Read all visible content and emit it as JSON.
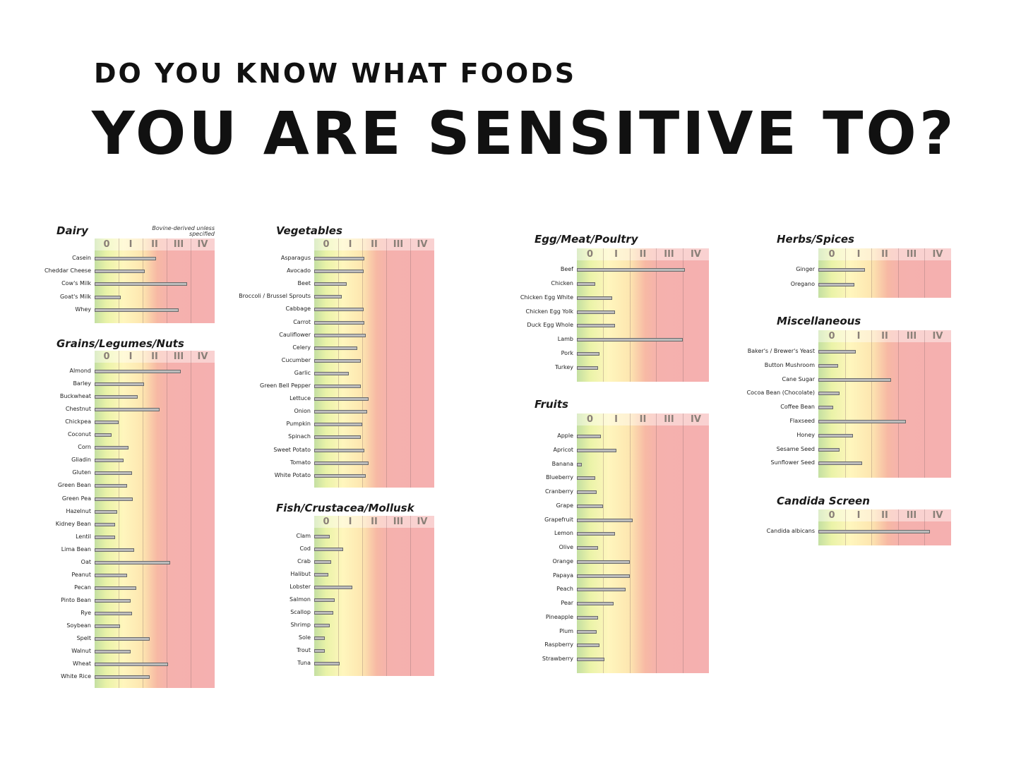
{
  "headline": {
    "line1": "DO YOU KNOW WHAT FOODS",
    "line2": "YOU ARE SENSITIVE TO?"
  },
  "scale_labels": [
    "0",
    "I",
    "II",
    "III",
    "IV"
  ],
  "chart_data": [
    {
      "type": "bar",
      "orientation": "horizontal",
      "title": "Dairy",
      "note": "Bovine-derived unless specified",
      "xlim": [
        0,
        5
      ],
      "categories": [
        "Casein",
        "Cheddar Cheese",
        "Cow's Milk",
        "Goat's Milk",
        "Whey"
      ],
      "values": [
        2.55,
        2.1,
        3.85,
        1.1,
        3.5
      ]
    },
    {
      "type": "bar",
      "orientation": "horizontal",
      "title": "Grains/Legumes/Nuts",
      "xlim": [
        0,
        5
      ],
      "categories": [
        "Almond",
        "Barley",
        "Buckwheat",
        "Chestnut",
        "Chickpea",
        "Coconut",
        "Corn",
        "Gliadin",
        "Gluten",
        "Green Bean",
        "Green Pea",
        "Hazelnut",
        "Kidney Bean",
        "Lentil",
        "Lima Bean",
        "Oat",
        "Peanut",
        "Pecan",
        "Pinto Bean",
        "Rye",
        "Soybean",
        "Spelt",
        "Walnut",
        "Wheat",
        "White Rice"
      ],
      "values": [
        3.6,
        2.05,
        1.8,
        2.7,
        1.0,
        0.7,
        1.4,
        1.2,
        1.55,
        1.35,
        1.6,
        0.95,
        0.85,
        0.85,
        1.65,
        3.15,
        1.35,
        1.75,
        1.5,
        1.55,
        1.05,
        2.3,
        1.5,
        3.05,
        2.3
      ]
    },
    {
      "type": "bar",
      "orientation": "horizontal",
      "title": "Vegetables",
      "xlim": [
        0,
        5
      ],
      "categories": [
        "Asparagus",
        "Avocado",
        "Beet",
        "Broccoli / Brussel Sprouts",
        "Cabbage",
        "Carrot",
        "Cauliflower",
        "Celery",
        "Cucumber",
        "Garlic",
        "Green Bell Pepper",
        "Lettuce",
        "Onion",
        "Pumpkin",
        "Spinach",
        "Sweet Potato",
        "Tomato",
        "White Potato"
      ],
      "values": [
        2.1,
        2.05,
        1.35,
        1.15,
        2.05,
        2.1,
        2.15,
        1.8,
        1.95,
        1.45,
        1.95,
        2.25,
        2.2,
        2.0,
        1.95,
        2.1,
        2.25,
        2.15
      ]
    },
    {
      "type": "bar",
      "orientation": "horizontal",
      "title": "Fish/Crustacea/Mollusk",
      "xlim": [
        0,
        5
      ],
      "categories": [
        "Clam",
        "Cod",
        "Crab",
        "Halibut",
        "Lobster",
        "Salmon",
        "Scallop",
        "Shrimp",
        "Sole",
        "Trout",
        "Tuna"
      ],
      "values": [
        0.65,
        1.2,
        0.7,
        0.6,
        1.6,
        0.85,
        0.8,
        0.65,
        0.45,
        0.45,
        1.05
      ]
    },
    {
      "type": "bar",
      "orientation": "horizontal",
      "title": "Egg/Meat/Poultry",
      "xlim": [
        0,
        5
      ],
      "categories": [
        "Beef",
        "Chicken",
        "Chicken Egg White",
        "Chicken Egg Yolk",
        "Duck Egg Whole",
        "Lamb",
        "Pork",
        "Turkey"
      ],
      "values": [
        4.1,
        0.7,
        1.35,
        1.45,
        1.45,
        4.0,
        0.85,
        0.8
      ]
    },
    {
      "type": "bar",
      "orientation": "horizontal",
      "title": "Fruits",
      "xlim": [
        0,
        5
      ],
      "categories": [
        "Apple",
        "Apricot",
        "Banana",
        "Blueberry",
        "Cranberry",
        "Grape",
        "Grapefruit",
        "Lemon",
        "Olive",
        "Orange",
        "Papaya",
        "Peach",
        "Pear",
        "Pineapple",
        "Plum",
        "Raspberry",
        "Strawberry"
      ],
      "values": [
        0.9,
        1.5,
        0.2,
        0.7,
        0.75,
        1.0,
        2.1,
        1.45,
        0.8,
        2.0,
        2.0,
        1.85,
        1.4,
        0.8,
        0.75,
        0.85,
        1.05
      ]
    },
    {
      "type": "bar",
      "orientation": "horizontal",
      "title": "Herbs/Spices",
      "xlim": [
        0,
        5
      ],
      "categories": [
        "Ginger",
        "Oregano"
      ],
      "values": [
        1.75,
        1.35
      ]
    },
    {
      "type": "bar",
      "orientation": "horizontal",
      "title": "Miscellaneous",
      "xlim": [
        0,
        5
      ],
      "categories": [
        "Baker's / Brewer's Yeast",
        "Button Mushroom",
        "Cane Sugar",
        "Cocoa Bean (Chocolate)",
        "Coffee Bean",
        "Flaxseed",
        "Honey",
        "Sesame Seed",
        "Sunflower Seed"
      ],
      "values": [
        1.4,
        0.75,
        2.75,
        0.8,
        0.55,
        3.3,
        1.3,
        0.8,
        1.65
      ]
    },
    {
      "type": "bar",
      "orientation": "horizontal",
      "title": "Candida Screen",
      "xlim": [
        0,
        5
      ],
      "categories": [
        "Candida albicans"
      ],
      "values": [
        4.2
      ]
    }
  ]
}
